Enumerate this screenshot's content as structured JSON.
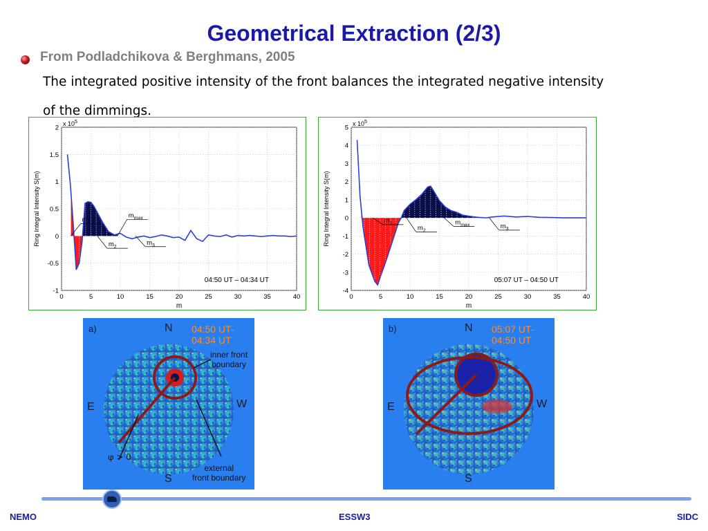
{
  "slide": {
    "title": "Geometrical Extraction (2/3)",
    "source": "From Podladchikova & Berghmans, 2005",
    "body_line1": "The integrated positive intensity of the front balances the integrated negative intensity",
    "body_line2": "of the dimmings."
  },
  "colors": {
    "title": "#1b1aa8",
    "curve": "#2b3fd6",
    "positive_fill": "#0a0f4a",
    "negative_fill": "#ff1a1a",
    "panel_border": "#3aa63a",
    "sun_bg": "#2a7ff0"
  },
  "chart_data": [
    {
      "type": "line",
      "title": "",
      "xlabel": "m",
      "ylabel": "Ring Integral Intensity S(m)",
      "y_multiplier_label": "x 10",
      "y_multiplier_exp": "5",
      "xlim": [
        0,
        40
      ],
      "ylim": [
        -1,
        2
      ],
      "xticks": [
        0,
        5,
        10,
        15,
        20,
        25,
        30,
        35,
        40
      ],
      "yticks": [
        -1,
        -0.5,
        0,
        0.5,
        1,
        1.5,
        2
      ],
      "grid": true,
      "annotation": "04:50 UT – 04:34 UT",
      "markers": [
        {
          "main": "m",
          "sub": "1",
          "x": 1.6,
          "y": 0.2
        },
        {
          "main": "m",
          "sub": "2",
          "x": 6.1,
          "y": -0.15
        },
        {
          "main": "m",
          "sub": "max",
          "x": 9.5,
          "y": 0.28
        },
        {
          "main": "m",
          "sub": "3",
          "x": 12.6,
          "y": -0.12
        }
      ],
      "x": [
        1,
        1.5,
        2,
        2.5,
        3,
        3.5,
        4,
        4.5,
        5,
        5.5,
        6,
        7,
        8,
        9,
        10,
        11,
        12,
        13,
        14,
        15,
        16,
        17,
        18,
        19,
        20,
        21,
        22,
        23,
        24,
        25,
        26,
        27,
        28,
        29,
        30,
        31,
        32,
        33,
        34,
        35,
        36,
        37,
        38,
        39,
        40
      ],
      "values": [
        1.5,
        0.95,
        0.2,
        -0.62,
        -0.5,
        -0.1,
        0.6,
        0.63,
        0.62,
        0.55,
        0.45,
        0.25,
        0.08,
        0.02,
        0.05,
        -0.02,
        -0.05,
        -0.02,
        0.0,
        -0.03,
        -0.01,
        0.02,
        0.0,
        -0.03,
        -0.02,
        -0.08,
        0.1,
        -0.05,
        -0.1,
        0.02,
        0.0,
        -0.01,
        0.02,
        -0.02,
        0.01,
        0.0,
        0.01,
        0.0,
        -0.01,
        0.0,
        0.01,
        0.0,
        0.0,
        -0.01,
        0.0
      ],
      "negative_region": [
        1.6,
        3.6
      ],
      "positive_region": [
        3.6,
        9.5
      ]
    },
    {
      "type": "line",
      "title": "",
      "xlabel": "m",
      "ylabel": "Ring Integral Intensity S(m)",
      "y_multiplier_label": "x 10",
      "y_multiplier_exp": "5",
      "xlim": [
        0,
        40
      ],
      "ylim": [
        -4,
        5
      ],
      "xticks": [
        0,
        5,
        10,
        15,
        20,
        25,
        30,
        35,
        40
      ],
      "yticks": [
        -4,
        -3,
        -2,
        -1,
        0,
        1,
        2,
        3,
        4,
        5
      ],
      "grid": true,
      "annotation": "05:07 UT – 04:50 UT",
      "markers": [
        {
          "main": "m",
          "sub": "1",
          "x": 3.7,
          "y": -0.45
        },
        {
          "main": "m",
          "sub": "2",
          "x": 9.4,
          "y": -0.55
        },
        {
          "main": "m",
          "sub": "max",
          "x": 15.8,
          "y": -0.55
        },
        {
          "main": "m",
          "sub": "3",
          "x": 23.5,
          "y": -0.45
        }
      ],
      "x": [
        1,
        1.5,
        2,
        3,
        4,
        4.5,
        5,
        6,
        7,
        8,
        8.5,
        9,
        10,
        11,
        12,
        13,
        13.5,
        14,
        15,
        16,
        17,
        18,
        19,
        20,
        21,
        22,
        23,
        24,
        26,
        28,
        30,
        32,
        34,
        36,
        38,
        40
      ],
      "values": [
        4.3,
        1.2,
        -0.5,
        -2.6,
        -3.5,
        -3.7,
        -3.2,
        -2.3,
        -1.3,
        -0.3,
        0.0,
        0.4,
        0.75,
        1.0,
        1.3,
        1.7,
        1.75,
        1.5,
        0.95,
        0.6,
        0.4,
        0.3,
        0.15,
        0.1,
        0.05,
        0.02,
        0.0,
        0.05,
        0.1,
        0.05,
        0.08,
        0.03,
        0.02,
        0.0,
        0.0,
        0.0
      ],
      "negative_region": [
        1.7,
        8.5
      ],
      "positive_region": [
        8.5,
        22
      ]
    }
  ],
  "images": [
    {
      "panel_label": "a)",
      "north": "N",
      "south": "S",
      "east": "E",
      "west": "W",
      "time_line1": "04:50 UT-",
      "time_line2": "04:34 UT",
      "note_inner_line1": "inner front",
      "note_inner_line2": "boundary",
      "note_external_line1": "external",
      "note_external_line2": "front boundary",
      "phi_label": "φ > 0"
    },
    {
      "panel_label": "b)",
      "north": "N",
      "south": "S",
      "east": "E",
      "west": "W",
      "time_line1": "05:07 UT-",
      "time_line2": "04:50 UT"
    }
  ],
  "footer": {
    "left": "NEMO",
    "center": "ESSW3",
    "right": "SIDC"
  }
}
